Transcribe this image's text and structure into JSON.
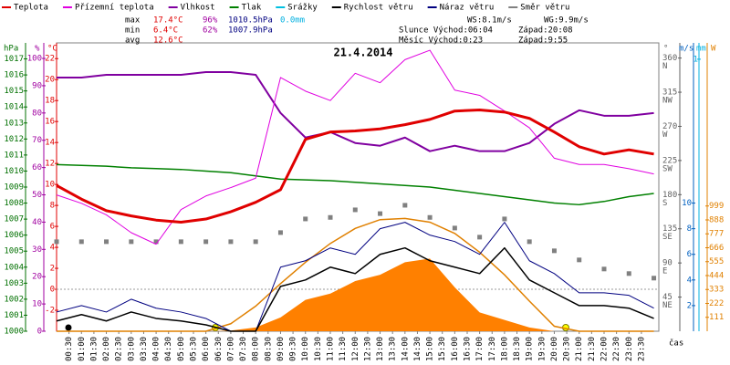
{
  "chart_data": {
    "type": "line",
    "title": "21.4.2014",
    "x_label": "čas",
    "xlim": [
      0,
      24.2
    ],
    "x": [
      0,
      1,
      2,
      3,
      4,
      5,
      6,
      7,
      8,
      9,
      10,
      11,
      12,
      13,
      14,
      15,
      16,
      17,
      18,
      19,
      20,
      21,
      22,
      23,
      24
    ],
    "xticks": [
      {
        "value": 0.5,
        "label": "00:30"
      },
      {
        "value": 1,
        "label": "01:00"
      },
      {
        "value": 1.5,
        "label": "01:30"
      },
      {
        "value": 2,
        "label": "02:00"
      },
      {
        "value": 2.5,
        "label": "02:30"
      },
      {
        "value": 3,
        "label": "03:00"
      },
      {
        "value": 3.5,
        "label": "03:30"
      },
      {
        "value": 4,
        "label": "04:00"
      },
      {
        "value": 4.5,
        "label": "04:30"
      },
      {
        "value": 5,
        "label": "05:00"
      },
      {
        "value": 5.5,
        "label": "05:30"
      },
      {
        "value": 6,
        "label": "06:00"
      },
      {
        "value": 6.5,
        "label": "06:30"
      },
      {
        "value": 7,
        "label": "07:00"
      },
      {
        "value": 7.5,
        "label": "07:30"
      },
      {
        "value": 8,
        "label": "08:00"
      },
      {
        "value": 8.5,
        "label": "08:30"
      },
      {
        "value": 9,
        "label": "09:00"
      },
      {
        "value": 9.5,
        "label": "09:30"
      },
      {
        "value": 10,
        "label": "10:00"
      },
      {
        "value": 10.5,
        "label": "10:30"
      },
      {
        "value": 11,
        "label": "11:00"
      },
      {
        "value": 11.5,
        "label": "11:30"
      },
      {
        "value": 12,
        "label": "12:00"
      },
      {
        "value": 12.5,
        "label": "12:30"
      },
      {
        "value": 13,
        "label": "13:00"
      },
      {
        "value": 13.5,
        "label": "13:30"
      },
      {
        "value": 14,
        "label": "14:00"
      },
      {
        "value": 14.5,
        "label": "14:30"
      },
      {
        "value": 15,
        "label": "15:00"
      },
      {
        "value": 15.5,
        "label": "15:30"
      },
      {
        "value": 16,
        "label": "16:00"
      },
      {
        "value": 16.5,
        "label": "16:30"
      },
      {
        "value": 17,
        "label": "17:00"
      },
      {
        "value": 17.5,
        "label": "17:30"
      },
      {
        "value": 18,
        "label": "18:00"
      },
      {
        "value": 18.5,
        "label": "18:30"
      },
      {
        "value": 19,
        "label": "19:00"
      },
      {
        "value": 19.5,
        "label": "19:30"
      },
      {
        "value": 20,
        "label": "20:00"
      },
      {
        "value": 20.5,
        "label": "20:30"
      },
      {
        "value": 21,
        "label": "21:00"
      },
      {
        "value": 21.5,
        "label": "21:30"
      },
      {
        "value": 22,
        "label": "22:00"
      },
      {
        "value": 22.5,
        "label": "22:30"
      },
      {
        "value": 23,
        "label": "23:00"
      },
      {
        "value": 23.5,
        "label": "23:30"
      }
    ],
    "axes": {
      "hpa": {
        "unit": "hPa",
        "lim": [
          1000,
          1018
        ],
        "ticks": [
          1000,
          1001,
          1002,
          1003,
          1004,
          1005,
          1006,
          1007,
          1008,
          1009,
          1010,
          1011,
          1012,
          1013,
          1014,
          1015,
          1016,
          1017
        ],
        "color": "#007000"
      },
      "pct": {
        "unit": "%",
        "lim": [
          0,
          105.7
        ],
        "ticks": [
          0,
          10,
          20,
          30,
          40,
          50,
          60,
          70,
          80,
          90,
          100
        ],
        "color": "#a000a0"
      },
      "temp": {
        "unit": "°C",
        "lim": [
          -4,
          23.5
        ],
        "ticks": [
          -2,
          0,
          2,
          4,
          6,
          8,
          10,
          12,
          14,
          16,
          18,
          20,
          22
        ],
        "color": "#e00000"
      },
      "dir": {
        "unit": "°",
        "lim": [
          0,
          380
        ],
        "ticks": [
          45,
          90,
          135,
          180,
          225,
          270,
          315,
          360
        ],
        "tick_names": [
          "NE",
          "E",
          "SE",
          "S",
          "SW",
          "W",
          "NW",
          "N"
        ],
        "color": "#606060"
      },
      "ms": {
        "unit": "m/s",
        "lim": [
          0,
          22.5
        ],
        "ticks": [
          2,
          4,
          6,
          8,
          10
        ],
        "color": "#0060c0"
      },
      "mm": {
        "unit": "mm",
        "lim": [
          0,
          1.06
        ],
        "ticks": [
          1
        ],
        "color": "#00b0e0"
      },
      "w": {
        "unit": "W",
        "lim": [
          0,
          2300
        ],
        "ticks": [
          111,
          222,
          333,
          444,
          555,
          666,
          777,
          888,
          999
        ],
        "color": "#e08000"
      }
    },
    "series": [
      {
        "name": "Teplota",
        "color": "#e00000",
        "axis": "temp",
        "style": "line",
        "width": 3,
        "values": [
          9.9,
          8.6,
          7.5,
          7.0,
          6.6,
          6.4,
          6.7,
          7.4,
          8.3,
          9.5,
          14.3,
          15.0,
          15.1,
          15.3,
          15.7,
          16.2,
          17.0,
          17.1,
          16.9,
          16.3,
          15.0,
          13.6,
          12.9,
          13.3,
          12.9
        ]
      },
      {
        "name": "Přízemní teplota",
        "color": "#e000e0",
        "axis": "temp",
        "style": "line",
        "width": 1,
        "values": [
          9.0,
          8.2,
          7.1,
          5.4,
          4.3,
          7.6,
          8.9,
          9.7,
          10.6,
          20.2,
          18.9,
          18.0,
          20.6,
          19.7,
          21.9,
          22.8,
          19.0,
          18.5,
          17.0,
          15.4,
          12.5,
          11.9,
          11.9,
          11.5,
          11.0
        ]
      },
      {
        "name": "Vlhkost",
        "color": "#8000a0",
        "axis": "pct",
        "style": "line",
        "width": 2,
        "values": [
          93,
          93,
          94,
          94,
          94,
          94,
          95,
          95,
          94,
          80,
          71,
          73,
          69,
          68,
          71,
          66,
          68,
          66,
          66,
          69,
          76,
          81,
          79,
          79,
          80
        ]
      },
      {
        "name": "Tlak",
        "color": "#008000",
        "axis": "hpa",
        "style": "line",
        "width": 1.5,
        "values": [
          1010.4,
          1010.35,
          1010.3,
          1010.2,
          1010.15,
          1010.1,
          1010.0,
          1009.9,
          1009.7,
          1009.5,
          1009.45,
          1009.4,
          1009.3,
          1009.2,
          1009.1,
          1009.0,
          1008.8,
          1008.6,
          1008.4,
          1008.2,
          1008.0,
          1007.9,
          1008.1,
          1008.4,
          1008.6
        ]
      },
      {
        "name": "Srážky",
        "color": "#00c0e0",
        "axis": "mm",
        "style": "none"
      },
      {
        "name": "Rychlost větru",
        "color": "#000000",
        "axis": "ms",
        "style": "line",
        "width": 1.5,
        "values": [
          0.8,
          1.3,
          0.8,
          1.5,
          1.0,
          0.8,
          0.5,
          0,
          0,
          3.5,
          4.0,
          5.0,
          4.5,
          6.0,
          6.5,
          5.5,
          5.0,
          4.5,
          6.5,
          4.0,
          3.0,
          2.0,
          2.0,
          1.8,
          1.0
        ]
      },
      {
        "name": "Náraz větru",
        "color": "#000080",
        "axis": "ms",
        "style": "line",
        "width": 1,
        "values": [
          1.5,
          2.0,
          1.5,
          2.5,
          1.8,
          1.5,
          1.0,
          0,
          0,
          5.0,
          5.5,
          6.5,
          6.0,
          8.0,
          8.5,
          7.5,
          7.0,
          6.0,
          8.5,
          5.5,
          4.5,
          3.0,
          3.0,
          2.8,
          1.8
        ]
      },
      {
        "name": "Směr větru",
        "color": "#808080",
        "axis": "dir",
        "style": "points",
        "width": 1,
        "values": [
          118,
          118,
          118,
          118,
          118,
          118,
          118,
          118,
          118,
          130,
          148,
          150,
          160,
          155,
          166,
          150,
          136,
          124,
          148,
          118,
          106,
          94,
          82,
          76,
          70
        ]
      }
    ],
    "radiation": {
      "axis": "w",
      "color": "#ff8000",
      "curve_color": "#e08000",
      "values": [
        0,
        0,
        0,
        0,
        0,
        0,
        0,
        5,
        30,
        110,
        250,
        300,
        400,
        450,
        550,
        580,
        350,
        150,
        90,
        30,
        0,
        0,
        0,
        0,
        0
      ],
      "theoretical": [
        0,
        0,
        0,
        0,
        0,
        0,
        0,
        60,
        200,
        380,
        550,
        700,
        820,
        890,
        900,
        870,
        780,
        630,
        450,
        240,
        40,
        0,
        0,
        0,
        0
      ]
    },
    "stats": [
      [
        {
          "text": "max",
          "color": "#000000"
        },
        {
          "text": "17.4°C",
          "color": "#e00000"
        },
        {
          "text": "96%",
          "color": "#a000a0"
        },
        {
          "text": "1010.5hPa",
          "color": "#000080"
        },
        {
          "text": "0.0mm",
          "color": "#00b0e0"
        }
      ],
      [
        {
          "text": "min",
          "color": "#000000"
        },
        {
          "text": "6.4°C",
          "color": "#e00000"
        },
        {
          "text": "62%",
          "color": "#a000a0"
        },
        {
          "text": "1007.9hPa",
          "color": "#000080"
        }
      ],
      [
        {
          "text": "avg",
          "color": "#000000"
        },
        {
          "text": "12.6°C",
          "color": "#e00000"
        }
      ]
    ],
    "info": [
      [
        "WS:8.1m/s",
        "WG:9.9m/s"
      ],
      [
        "Slunce Východ:06:04",
        "Západ:20:08"
      ],
      [
        "Měsíc Východ:0:23",
        "Západ:9:55"
      ]
    ]
  }
}
